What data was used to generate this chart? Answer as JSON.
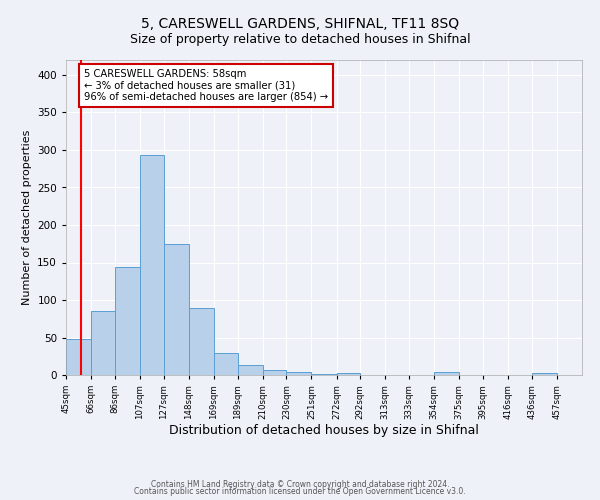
{
  "title": "5, CARESWELL GARDENS, SHIFNAL, TF11 8SQ",
  "subtitle": "Size of property relative to detached houses in Shifnal",
  "xlabel": "Distribution of detached houses by size in Shifnal",
  "ylabel": "Number of detached properties",
  "bar_labels": [
    "45sqm",
    "66sqm",
    "86sqm",
    "107sqm",
    "127sqm",
    "148sqm",
    "169sqm",
    "189sqm",
    "210sqm",
    "230sqm",
    "251sqm",
    "272sqm",
    "292sqm",
    "313sqm",
    "333sqm",
    "354sqm",
    "375sqm",
    "395sqm",
    "416sqm",
    "436sqm",
    "457sqm"
  ],
  "bar_values": [
    48,
    86,
    144,
    293,
    175,
    90,
    30,
    13,
    7,
    4,
    2,
    3,
    0,
    0,
    0,
    4,
    0,
    0,
    0,
    3,
    0
  ],
  "bar_color": "#b8d0ea",
  "bar_edge_color": "#5a9fd4",
  "annotation_text": "5 CARESWELL GARDENS: 58sqm\n← 3% of detached houses are smaller (31)\n96% of semi-detached houses are larger (854) →",
  "annotation_box_color": "#ffffff",
  "annotation_box_edge_color": "#cc0000",
  "redline_x": 58,
  "ylim": [
    0,
    420
  ],
  "yticks": [
    0,
    50,
    100,
    150,
    200,
    250,
    300,
    350,
    400
  ],
  "background_color": "#eef2f8",
  "grid_color": "#ffffff",
  "footer_line1": "Contains HM Land Registry data © Crown copyright and database right 2024.",
  "footer_line2": "Contains public sector information licensed under the Open Government Licence v3.0.",
  "title_fontsize": 10,
  "subtitle_fontsize": 9,
  "xlabel_fontsize": 9,
  "ylabel_fontsize": 8
}
